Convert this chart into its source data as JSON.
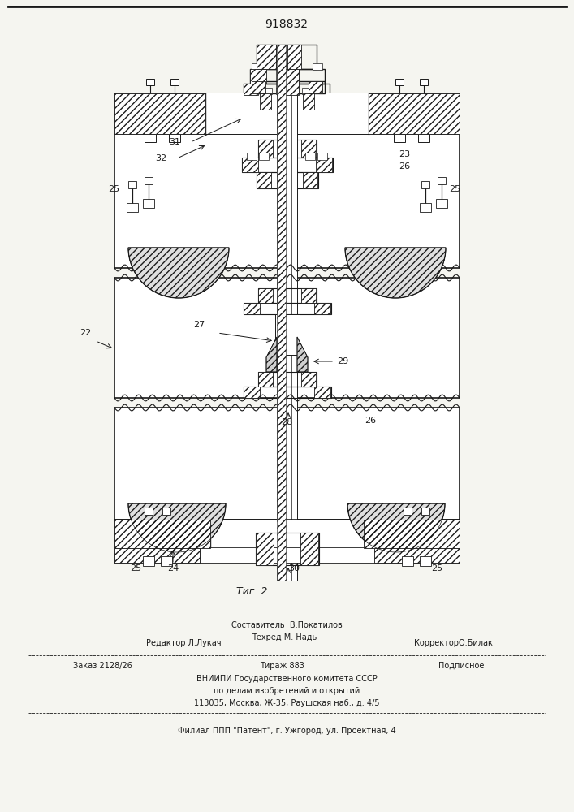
{
  "patent_number": "918832",
  "bg_color": "#f5f5f0",
  "line_color": "#1a1a1a",
  "fig_caption": "Τиг. 2",
  "footer": {
    "sestavitel": "Составитель  В.Покатилов",
    "redaktor": "Редактор Л.Лукач",
    "tehred": "Техред М. Надь",
    "korrektor": "КорректорО.Билак",
    "zakaz": "Заказ 2128/26",
    "tirazh": "Тираж 883",
    "podpisnoe": "Подписное",
    "vniipи": "ВНИИПИ Государственного комитета СССР",
    "delam": "по делам изобретений и открытий",
    "address": "113035, Москва, Ж-35, Раушская наб., д. 4/5",
    "filial": "Филиал ППП \"Патент\", г. Ужгород, ул. Проектная, 4"
  }
}
